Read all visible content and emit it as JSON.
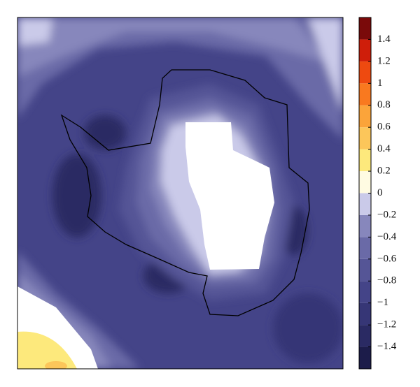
{
  "colorbar": {
    "levels": [
      -1.6,
      -1.4,
      -1.2,
      -1,
      -0.8,
      -0.6,
      -0.4,
      -0.2,
      0,
      0.2,
      0.4,
      0.6,
      0.8,
      1,
      1.2,
      1.4,
      1.6
    ],
    "colors": [
      "#1c1c4a",
      "#2a2a63",
      "#363676",
      "#444488",
      "#555596",
      "#6a6aa7",
      "#8787bc",
      "#cacae9",
      "#fffbe2",
      "#fde97c",
      "#fcc65a",
      "#fba43a",
      "#f9791f",
      "#ee4a10",
      "#cf1e0a",
      "#7a0a0a"
    ],
    "ticks": [
      1.4,
      1.2,
      1,
      0.8,
      0.6,
      0.4,
      0.2,
      0,
      {
        "value": -0.2,
        "label": "−0.2"
      },
      {
        "value": -0.4,
        "label": "−0.4"
      },
      {
        "value": -0.6,
        "label": "−0.6"
      },
      {
        "value": -0.8,
        "label": "−0.8"
      },
      {
        "value": -1,
        "label": "−1"
      },
      {
        "value": -1.2,
        "label": "−1.2"
      },
      {
        "value": -1.4,
        "label": "−1.4"
      }
    ]
  }
}
